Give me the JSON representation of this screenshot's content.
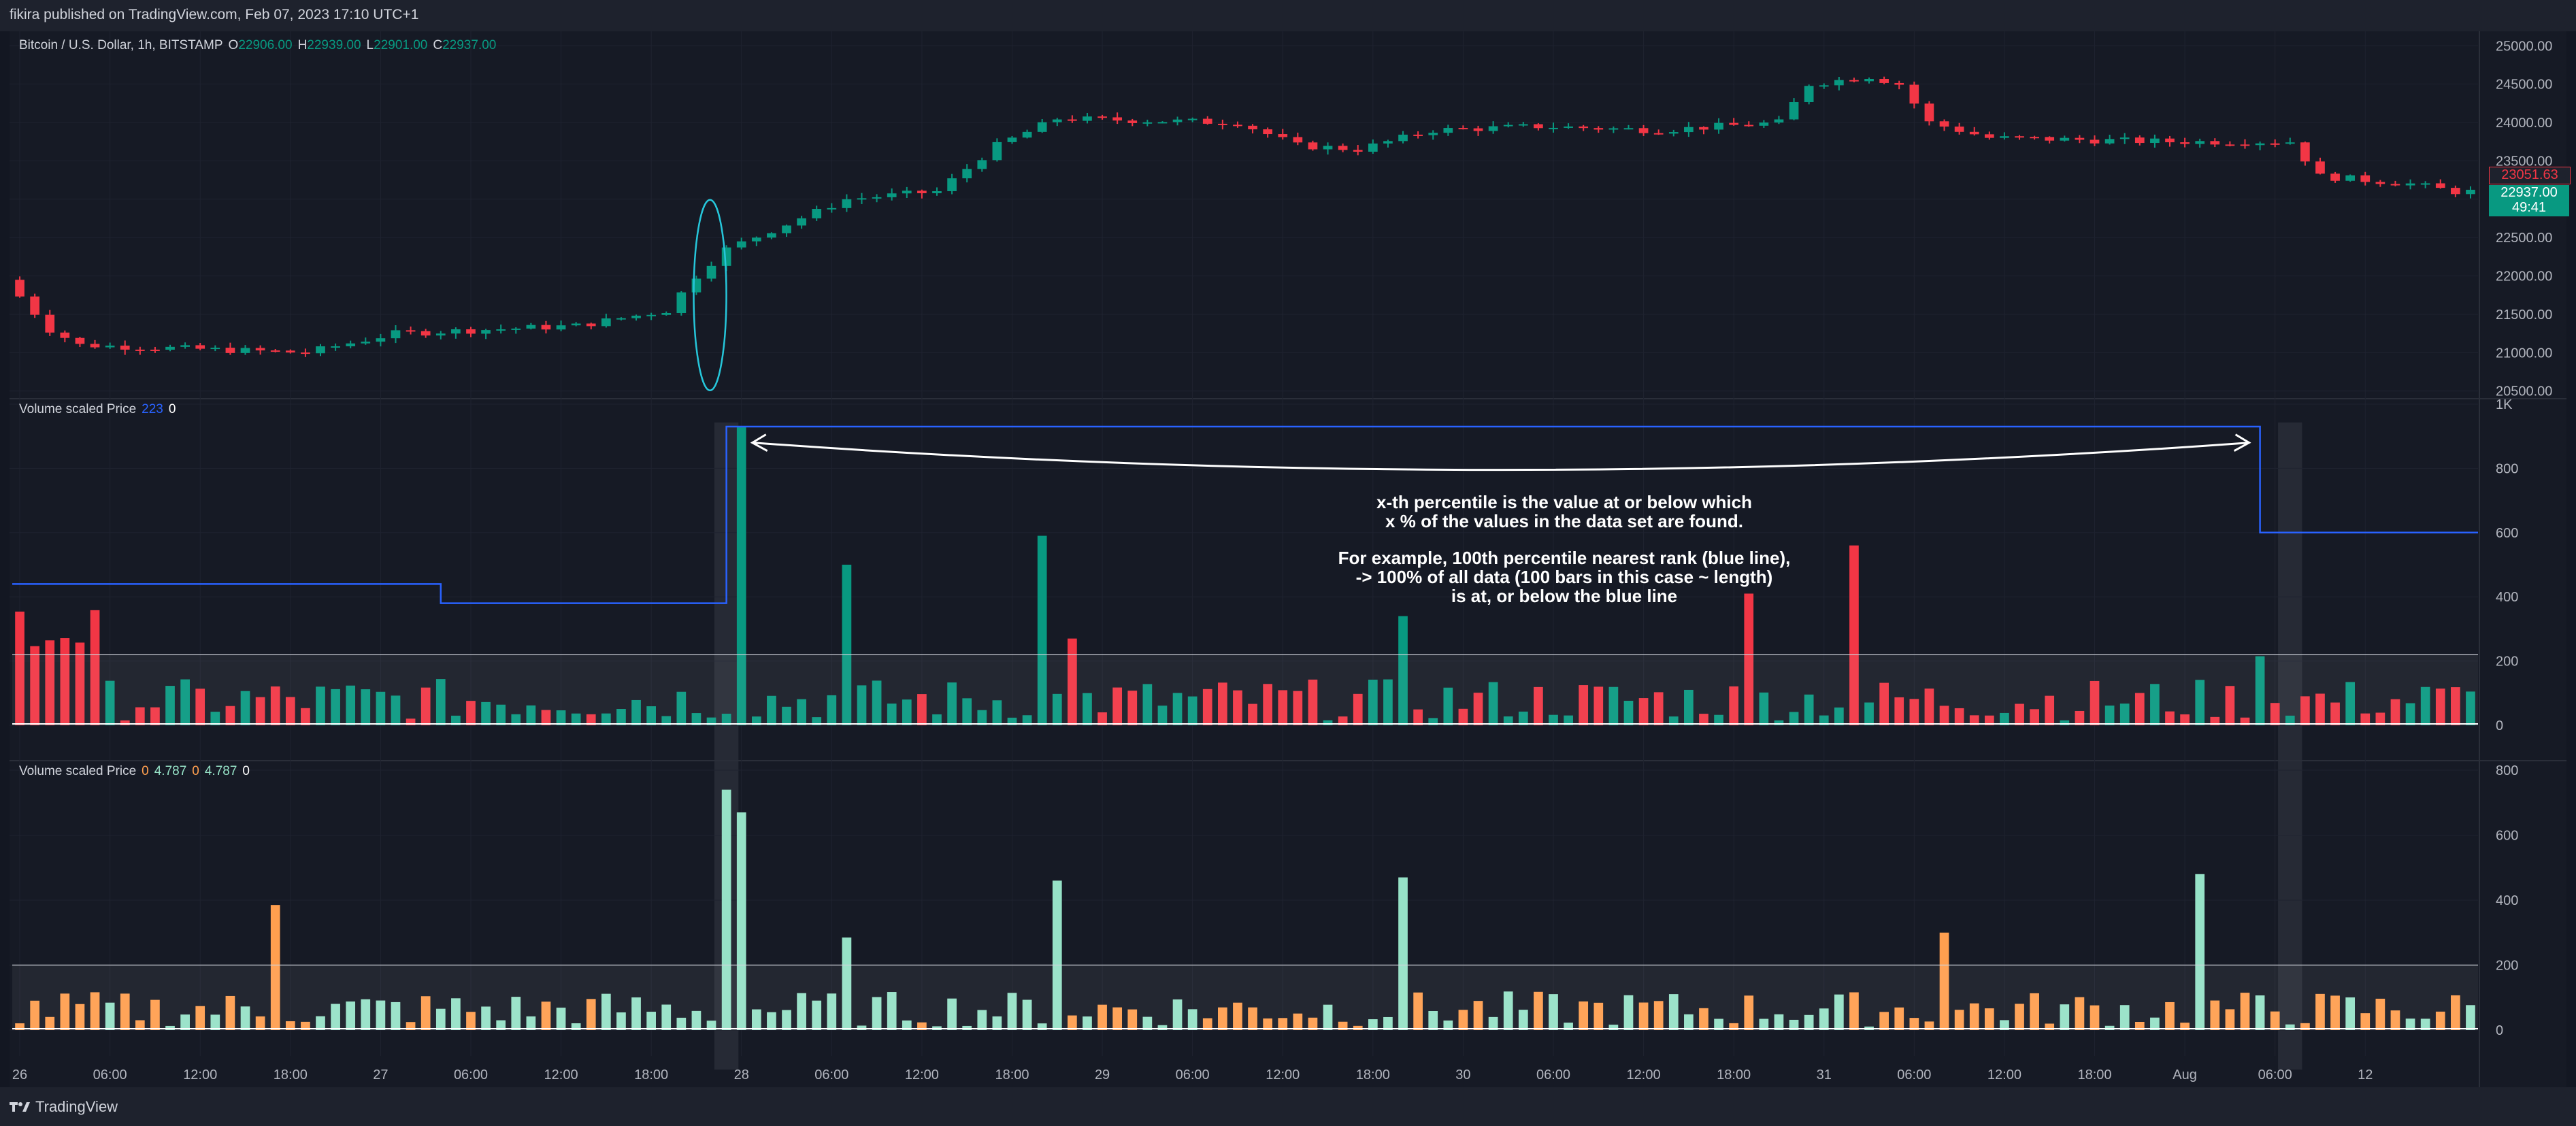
{
  "header": {
    "publisher": "fikira published on TradingView.com, Feb 07, 2023 17:10 UTC+1"
  },
  "legend": {
    "symbol": "Bitcoin / U.S. Dollar, 1h, BITSTAMP",
    "o_label": "O",
    "o": "22906.00",
    "h_label": "H",
    "h": "22939.00",
    "l_label": "L",
    "l": "22901.00",
    "c_label": "C",
    "c": "22937.00"
  },
  "indicator1": {
    "name": "Volume scaled Price",
    "v1": "223",
    "v2": "0"
  },
  "indicator2": {
    "name": "Volume scaled Price",
    "v1": "0",
    "v2": "4.787",
    "v3": "0",
    "v4": "4.787",
    "v5": "0"
  },
  "annotation": {
    "line1": "x-th percentile is the value at or below which",
    "line2": "x % of the values in the data set are found.",
    "line3": "For example, 100th percentile nearest rank (blue line),",
    "line4": "-> 100% of all data (100 bars in this case ~ length)",
    "line5": "is at, or below the blue line"
  },
  "price_tags": {
    "last_close": "23051.63",
    "current": "22937.00",
    "countdown": "49:41"
  },
  "footer": {
    "brand": "TradingView"
  },
  "colors": {
    "up": "#089981",
    "down": "#f23645",
    "vol_up": "#96e2c7",
    "vol_down": "#ff9f4f",
    "percentile_line": "#2962ff",
    "avg_line": "#d1d4dc",
    "annot_ellipse": "#26c6da",
    "background": "#131722"
  },
  "chart_data": [
    {
      "type": "candlestick",
      "title": "Bitcoin / U.S. Dollar, 1h, BITSTAMP",
      "x_ticks": [
        "26",
        "06:00",
        "12:00",
        "18:00",
        "27",
        "06:00",
        "12:00",
        "18:00",
        "28",
        "06:00",
        "12:00",
        "18:00",
        "29",
        "06:00",
        "12:00",
        "18:00",
        "30",
        "06:00",
        "12:00",
        "18:00",
        "31",
        "06:00",
        "12:00",
        "18:00",
        "Aug",
        "06:00",
        "12"
      ],
      "y_ticks": [
        "25000.00",
        "24500.00",
        "24000.00",
        "23500.00",
        "23000.00",
        "22500.00",
        "22000.00",
        "21500.00",
        "21000.00",
        "20500.00"
      ],
      "ylim": [
        20400,
        25100
      ],
      "segments": [
        [
          0,
          21950
        ],
        [
          3,
          21300
        ],
        [
          5,
          21100
        ],
        [
          20,
          21000
        ],
        [
          26,
          21250
        ],
        [
          38,
          21350
        ],
        [
          44,
          21550
        ],
        [
          46,
          22000
        ],
        [
          48,
          22350
        ],
        [
          56,
          23000
        ],
        [
          62,
          23100
        ],
        [
          66,
          23700
        ],
        [
          70,
          24050
        ],
        [
          82,
          24000
        ],
        [
          86,
          23700
        ],
        [
          90,
          23650
        ],
        [
          95,
          23900
        ],
        [
          102,
          23950
        ],
        [
          110,
          23900
        ],
        [
          118,
          24000
        ],
        [
          120,
          24500
        ],
        [
          124,
          24600
        ],
        [
          126,
          24500
        ],
        [
          128,
          24000
        ],
        [
          132,
          23800
        ],
        [
          144,
          23750
        ],
        [
          152,
          23750
        ],
        [
          154,
          23300
        ],
        [
          160,
          23200
        ],
        [
          163,
          23100
        ]
      ]
    },
    {
      "type": "bar",
      "title": "Volume scaled Price",
      "y_ticks": [
        "1K",
        "800",
        "600",
        "400",
        "200",
        "0"
      ],
      "ylim": [
        0,
        1000
      ],
      "percentile_line_steps": [
        [
          0,
          440
        ],
        [
          28,
          380
        ],
        [
          47,
          930
        ],
        [
          149,
          600
        ]
      ],
      "mean_level": 220,
      "spikes": {
        "48": 930,
        "55": 500,
        "68": 590,
        "70": 270,
        "92": 340,
        "115": 410,
        "122": 560,
        "149": 215
      }
    },
    {
      "type": "bar",
      "title": "Volume scaled Price",
      "y_ticks": [
        "800",
        "600",
        "400",
        "200",
        "0"
      ],
      "ylim": [
        0,
        800
      ],
      "mean_level": 200,
      "spikes": {
        "17": 385,
        "47": 740,
        "48": 670,
        "55": 285,
        "69": 460,
        "92": 470,
        "145": 480,
        "128": 300
      }
    }
  ]
}
